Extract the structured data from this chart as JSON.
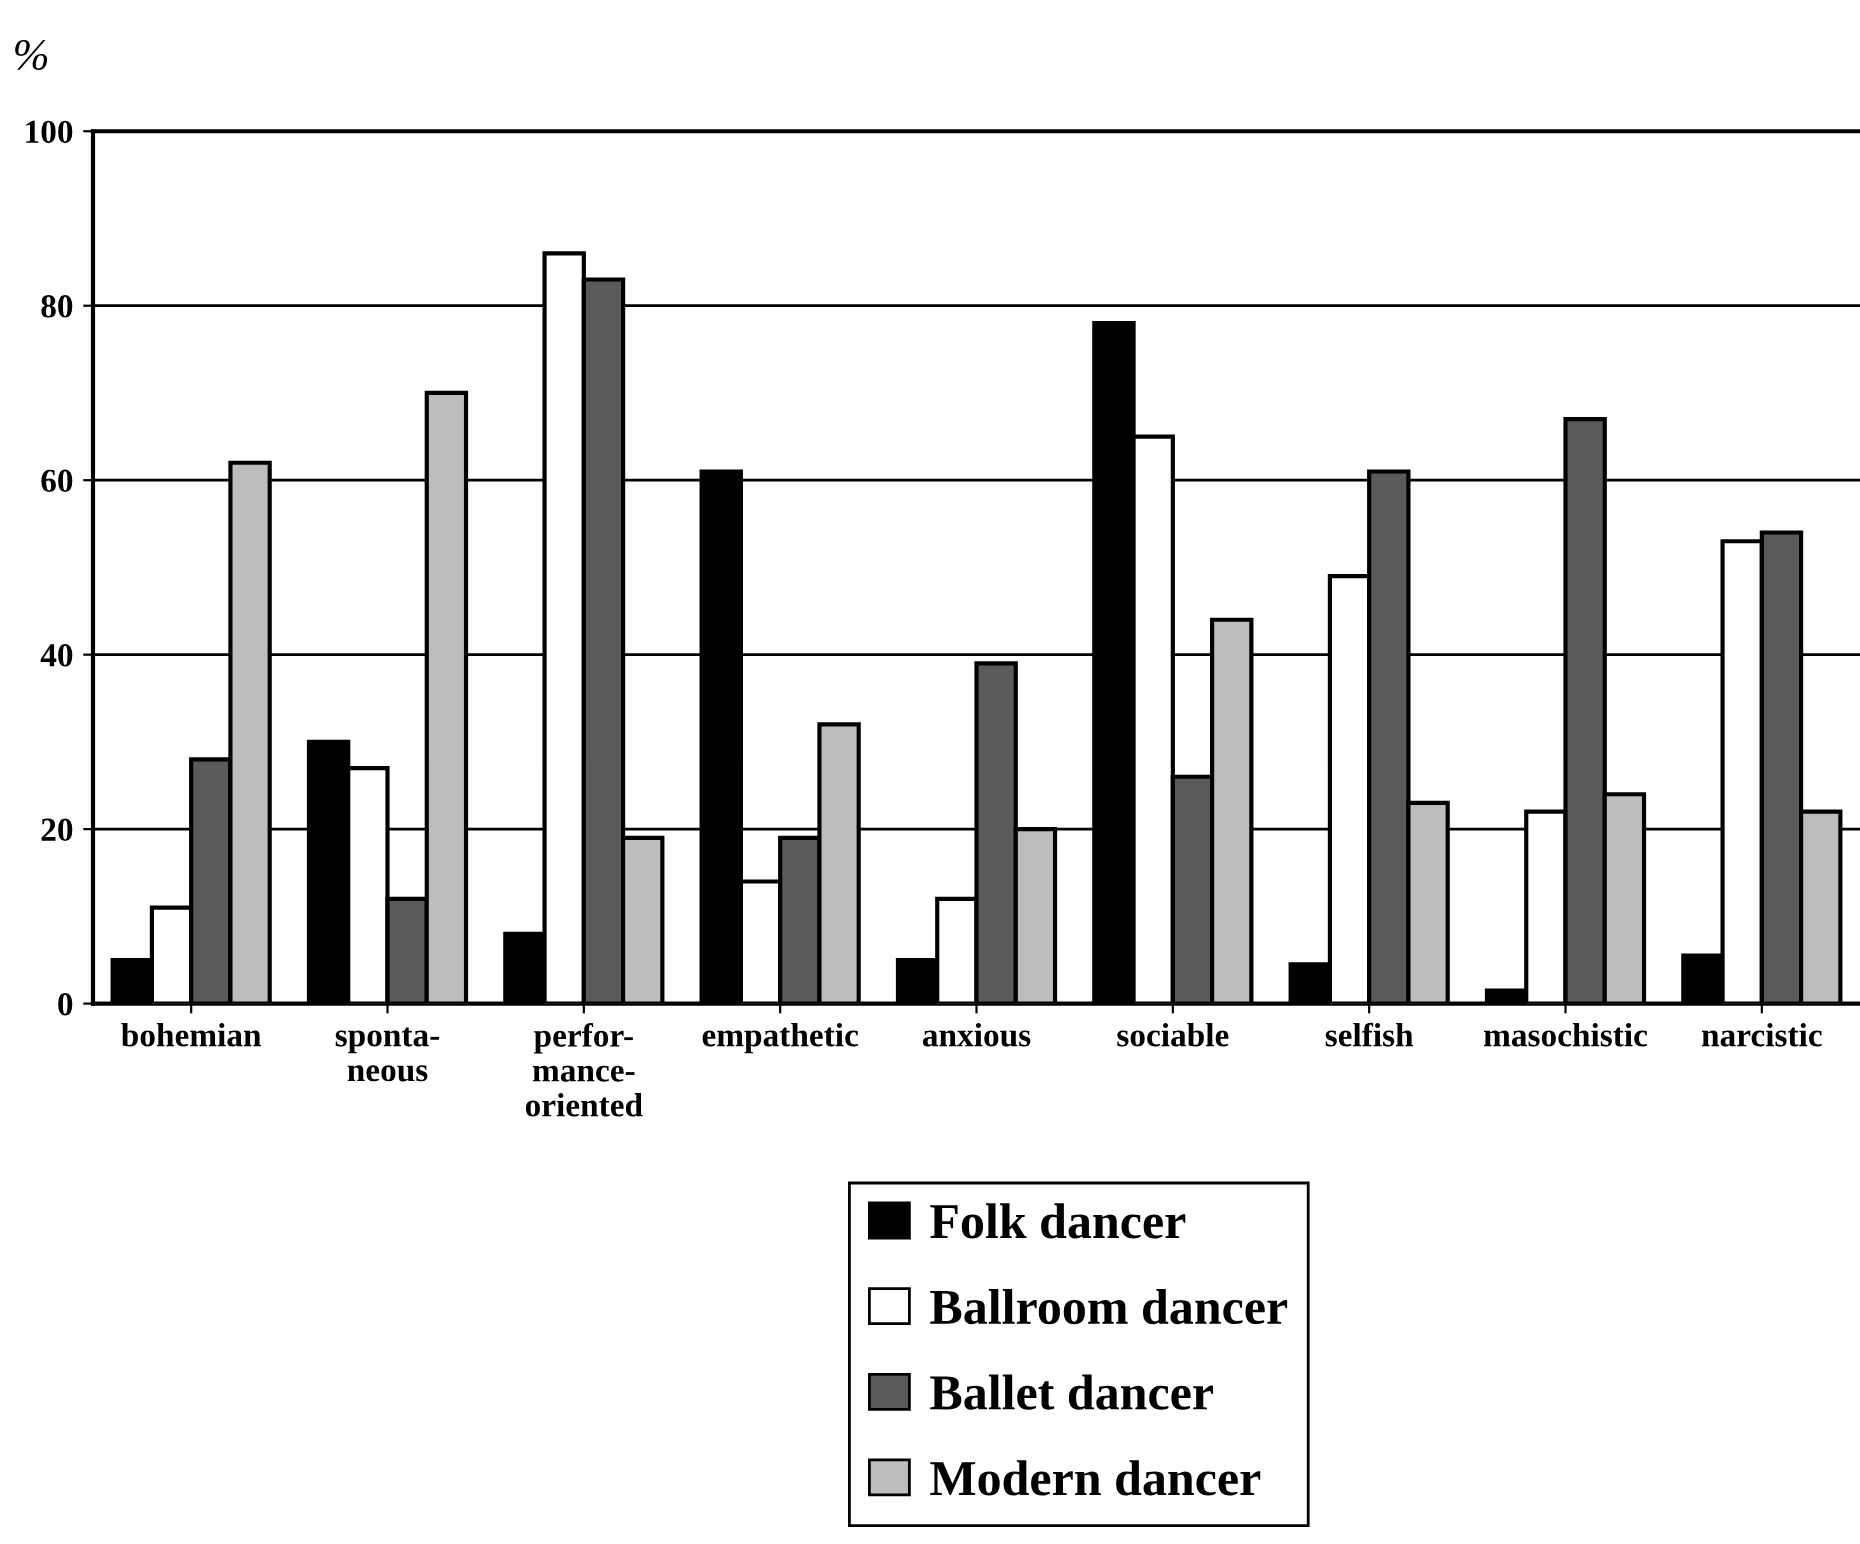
{
  "chart_data": {
    "type": "bar",
    "ylabel": "%",
    "categories": [
      "bohemian",
      "sponta-\nneous",
      "perfor-\nmance-\noriented",
      "empathetic",
      "anxious",
      "sociable",
      "selfish",
      "masochistic",
      "narcistic"
    ],
    "series": [
      {
        "name": "Folk dancer",
        "color": "#000000",
        "values": [
          5,
          30,
          8,
          61,
          5,
          78,
          4.5,
          1.5,
          5.5
        ]
      },
      {
        "name": "Ballroom dancer",
        "color": "#ffffff",
        "values": [
          11,
          27,
          86,
          14,
          12,
          65,
          49,
          22,
          53
        ]
      },
      {
        "name": "Ballet dancer",
        "color": "#5a5a5a",
        "values": [
          28,
          12,
          83,
          19,
          39,
          26,
          61,
          67,
          54
        ]
      },
      {
        "name": "Modern dancer",
        "color": "#bdbdbd",
        "values": [
          62,
          70,
          19,
          32,
          20,
          44,
          23,
          24,
          22
        ]
      }
    ],
    "ylim": [
      0,
      100
    ],
    "yticks": [
      0,
      20,
      40,
      60,
      80,
      100
    ],
    "grid": "y",
    "legend": "bottom"
  }
}
